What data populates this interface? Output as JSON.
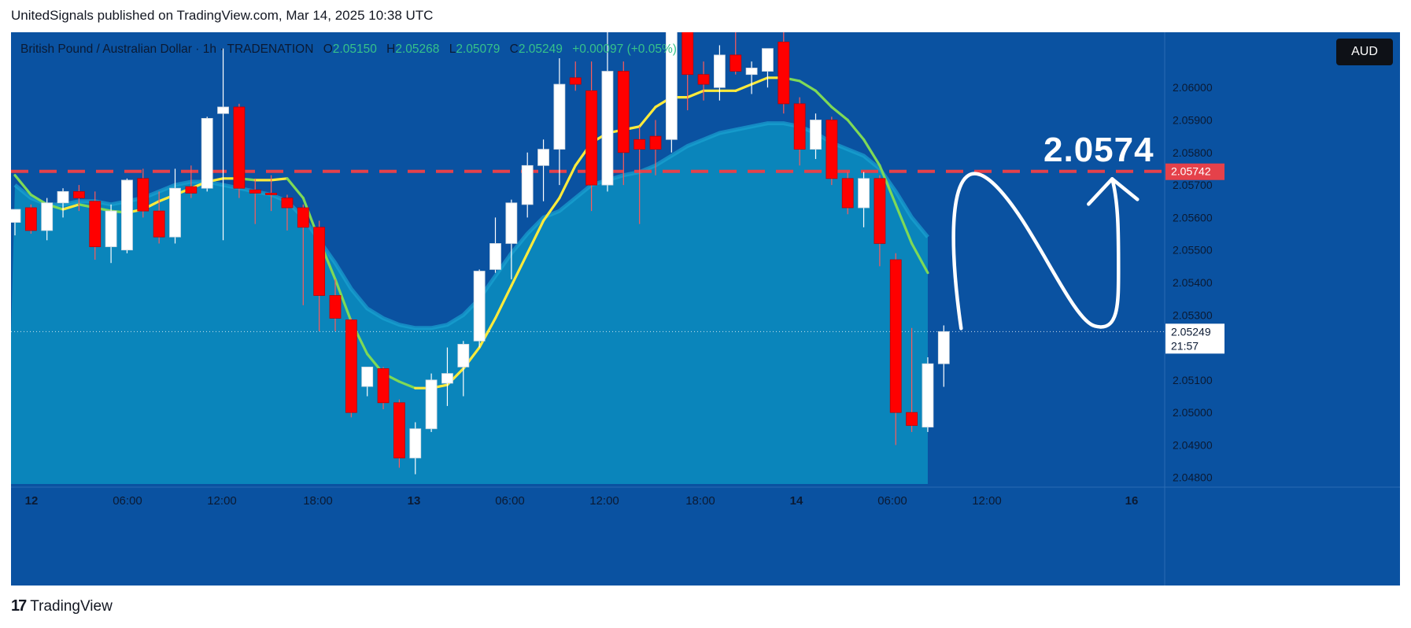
{
  "header": {
    "published": "UnitedSignals published on TradingView.com, Mar 14, 2025 10:38 UTC"
  },
  "legend": {
    "symbol": "British Pound / Australian Dollar · 1h · TRADENATION",
    "o_label": "O",
    "o": "2.05150",
    "h_label": "H",
    "h": "2.05268",
    "l_label": "L",
    "l": "2.05079",
    "c_label": "C",
    "c": "2.05249",
    "change": "+0.00097 (+0.05%)"
  },
  "currency_badge": "AUD",
  "annotation": {
    "text": "2.0574"
  },
  "price_labels": {
    "target": "2.05742",
    "last": "2.05249",
    "countdown": "21:57"
  },
  "footer": {
    "brand": "TradingView",
    "logo_mark": "17"
  },
  "colors": {
    "background": "#0a52a1",
    "band_fill": "#0a85bb",
    "band_edge": "#1aa3d1",
    "bull_candle": "#ffffff",
    "bear_candle": "#ff0000",
    "ma_line_up": "#ffeb3b",
    "ma_line_down": "#7ed957",
    "target_line": "#e5414a",
    "annotation": "#ffffff"
  },
  "chart_data": {
    "type": "candlestick",
    "symbol": "GBPAUD",
    "timeframe": "1h",
    "x_tick_labels": [
      "12",
      "06:00",
      "12:00",
      "18:00",
      "13",
      "06:00",
      "12:00",
      "18:00",
      "14",
      "06:00",
      "12:00",
      "16"
    ],
    "y_tick_labels": [
      "2.04800",
      "2.04900",
      "2.05000",
      "2.05100",
      "2.05200",
      "2.05300",
      "2.05400",
      "2.05500",
      "2.05600",
      "2.05700",
      "2.05800",
      "2.05900",
      "2.06000"
    ],
    "ylim": [
      2.0478,
      2.0617
    ],
    "grid": false,
    "candles": [
      {
        "o": 2.05585,
        "h": 2.05625,
        "l": 2.05545,
        "c": 2.05625
      },
      {
        "o": 2.0563,
        "h": 2.0564,
        "l": 2.0555,
        "c": 2.0556
      },
      {
        "o": 2.0556,
        "h": 2.0566,
        "l": 2.0553,
        "c": 2.05645
      },
      {
        "o": 2.05645,
        "h": 2.0569,
        "l": 2.056,
        "c": 2.0568
      },
      {
        "o": 2.0568,
        "h": 2.057,
        "l": 2.0562,
        "c": 2.0566
      },
      {
        "o": 2.0565,
        "h": 2.0568,
        "l": 2.0547,
        "c": 2.0551
      },
      {
        "o": 2.0551,
        "h": 2.0564,
        "l": 2.0546,
        "c": 2.0562
      },
      {
        "o": 2.055,
        "h": 2.0572,
        "l": 2.0549,
        "c": 2.05715
      },
      {
        "o": 2.0572,
        "h": 2.0575,
        "l": 2.056,
        "c": 2.0562
      },
      {
        "o": 2.0562,
        "h": 2.0568,
        "l": 2.0552,
        "c": 2.0554
      },
      {
        "o": 2.0554,
        "h": 2.0575,
        "l": 2.0552,
        "c": 2.0569
      },
      {
        "o": 2.05695,
        "h": 2.0576,
        "l": 2.0566,
        "c": 2.05675
      },
      {
        "o": 2.0569,
        "h": 2.0591,
        "l": 2.0568,
        "c": 2.05905
      },
      {
        "o": 2.0592,
        "h": 2.0612,
        "l": 2.0553,
        "c": 2.0594
      },
      {
        "o": 2.0594,
        "h": 2.0595,
        "l": 2.0566,
        "c": 2.0569
      },
      {
        "o": 2.05685,
        "h": 2.0572,
        "l": 2.0558,
        "c": 2.05675
      },
      {
        "o": 2.05675,
        "h": 2.0573,
        "l": 2.0562,
        "c": 2.0567
      },
      {
        "o": 2.0566,
        "h": 2.0567,
        "l": 2.0556,
        "c": 2.0563
      },
      {
        "o": 2.0563,
        "h": 2.0564,
        "l": 2.0533,
        "c": 2.0557
      },
      {
        "o": 2.0557,
        "h": 2.0559,
        "l": 2.0525,
        "c": 2.0536
      },
      {
        "o": 2.0536,
        "h": 2.0541,
        "l": 2.0525,
        "c": 2.0529
      },
      {
        "o": 2.05285,
        "h": 2.0529,
        "l": 2.04985,
        "c": 2.05
      },
      {
        "o": 2.0508,
        "h": 2.0514,
        "l": 2.0505,
        "c": 2.0514
      },
      {
        "o": 2.05135,
        "h": 2.0514,
        "l": 2.0501,
        "c": 2.0503
      },
      {
        "o": 2.0503,
        "h": 2.0504,
        "l": 2.0483,
        "c": 2.0486
      },
      {
        "o": 2.0486,
        "h": 2.0497,
        "l": 2.0481,
        "c": 2.0495
      },
      {
        "o": 2.0495,
        "h": 2.0512,
        "l": 2.0494,
        "c": 2.051
      },
      {
        "o": 2.0509,
        "h": 2.052,
        "l": 2.0502,
        "c": 2.0512
      },
      {
        "o": 2.0514,
        "h": 2.0522,
        "l": 2.0505,
        "c": 2.0521
      },
      {
        "o": 2.0522,
        "h": 2.0544,
        "l": 2.052,
        "c": 2.05435
      },
      {
        "o": 2.0544,
        "h": 2.056,
        "l": 2.0543,
        "c": 2.0552
      },
      {
        "o": 2.0552,
        "h": 2.05655,
        "l": 2.0541,
        "c": 2.05645
      },
      {
        "o": 2.0564,
        "h": 2.058,
        "l": 2.056,
        "c": 2.0576
      },
      {
        "o": 2.0576,
        "h": 2.0584,
        "l": 2.0565,
        "c": 2.0581
      },
      {
        "o": 2.0581,
        "h": 2.0609,
        "l": 2.057,
        "c": 2.0601
      },
      {
        "o": 2.0603,
        "h": 2.0608,
        "l": 2.0599,
        "c": 2.0601
      },
      {
        "o": 2.0599,
        "h": 2.0608,
        "l": 2.0562,
        "c": 2.057
      },
      {
        "o": 2.057,
        "h": 2.0619,
        "l": 2.0568,
        "c": 2.0605
      },
      {
        "o": 2.0605,
        "h": 2.0608,
        "l": 2.057,
        "c": 2.058
      },
      {
        "o": 2.0584,
        "h": 2.0588,
        "l": 2.0558,
        "c": 2.0581
      },
      {
        "o": 2.0585,
        "h": 2.059,
        "l": 2.0573,
        "c": 2.0581
      },
      {
        "o": 2.0584,
        "h": 2.0635,
        "l": 2.058,
        "c": 2.0632
      },
      {
        "o": 2.063,
        "h": 2.064,
        "l": 2.0593,
        "c": 2.0604
      },
      {
        "o": 2.0604,
        "h": 2.0608,
        "l": 2.0596,
        "c": 2.0601
      },
      {
        "o": 2.06,
        "h": 2.0613,
        "l": 2.0596,
        "c": 2.061
      },
      {
        "o": 2.061,
        "h": 2.0631,
        "l": 2.0604,
        "c": 2.0605
      },
      {
        "o": 2.0604,
        "h": 2.0608,
        "l": 2.0598,
        "c": 2.0606
      },
      {
        "o": 2.0605,
        "h": 2.0612,
        "l": 2.06,
        "c": 2.0612
      },
      {
        "o": 2.0614,
        "h": 2.0632,
        "l": 2.0592,
        "c": 2.0595
      },
      {
        "o": 2.0595,
        "h": 2.0597,
        "l": 2.0576,
        "c": 2.0581
      },
      {
        "o": 2.0581,
        "h": 2.0592,
        "l": 2.0578,
        "c": 2.059
      },
      {
        "o": 2.059,
        "h": 2.0591,
        "l": 2.057,
        "c": 2.0572
      },
      {
        "o": 2.0572,
        "h": 2.0574,
        "l": 2.0561,
        "c": 2.0563
      },
      {
        "o": 2.0563,
        "h": 2.0574,
        "l": 2.0557,
        "c": 2.0572
      },
      {
        "o": 2.0572,
        "h": 2.0573,
        "l": 2.0545,
        "c": 2.0552
      },
      {
        "o": 2.0547,
        "h": 2.0549,
        "l": 2.049,
        "c": 2.05
      },
      {
        "o": 2.05,
        "h": 2.0526,
        "l": 2.0494,
        "c": 2.0496
      },
      {
        "o": 2.04955,
        "h": 2.0517,
        "l": 2.0494,
        "c": 2.0515
      },
      {
        "o": 2.0515,
        "h": 2.05268,
        "l": 2.05079,
        "c": 2.05249
      }
    ],
    "moving_average": [
      2.0573,
      2.0567,
      2.0564,
      2.05625,
      2.0564,
      2.0563,
      2.0562,
      2.05615,
      2.05625,
      2.0565,
      2.0567,
      2.0569,
      2.0571,
      2.0572,
      2.0572,
      2.05715,
      2.05715,
      2.0572,
      2.0566,
      2.0553,
      2.0541,
      2.0528,
      2.0518,
      2.0512,
      2.05095,
      2.05075,
      2.05075,
      2.05085,
      2.05135,
      2.052,
      2.0529,
      2.0539,
      2.0549,
      2.0559,
      2.0566,
      2.0576,
      2.0583,
      2.0586,
      2.0587,
      2.0588,
      2.0594,
      2.0597,
      2.0597,
      2.0599,
      2.0599,
      2.0599,
      2.0601,
      2.0603,
      2.0603,
      2.0602,
      2.0599,
      2.0594,
      2.059,
      2.0584,
      2.0576,
      2.0564,
      2.0552,
      2.0543
    ],
    "band_upper": [
      2.057,
      2.0566,
      2.0564,
      2.0564,
      2.0565,
      2.0565,
      2.0564,
      2.0565,
      2.0566,
      2.0568,
      2.057,
      2.0571,
      2.0571,
      2.057,
      2.0569,
      2.0568,
      2.0567,
      2.0565,
      2.056,
      2.0553,
      2.0546,
      2.0538,
      2.0532,
      2.0529,
      2.0527,
      2.0526,
      2.0526,
      2.0527,
      2.053,
      2.0535,
      2.0542,
      2.0549,
      2.0555,
      2.056,
      2.0562,
      2.0566,
      2.057,
      2.05715,
      2.0573,
      2.0574,
      2.0576,
      2.0579,
      2.0582,
      2.0584,
      2.0586,
      2.0587,
      2.0588,
      2.0589,
      2.0589,
      2.0588,
      2.0586,
      2.0583,
      2.0581,
      2.0579,
      2.0575,
      2.0568,
      2.056,
      2.0554
    ],
    "target_level": 2.05742,
    "last_price": 2.05249,
    "annotation": "2.0574",
    "projection": "arc up from last price, pull back, then rally toward 2.0574"
  }
}
